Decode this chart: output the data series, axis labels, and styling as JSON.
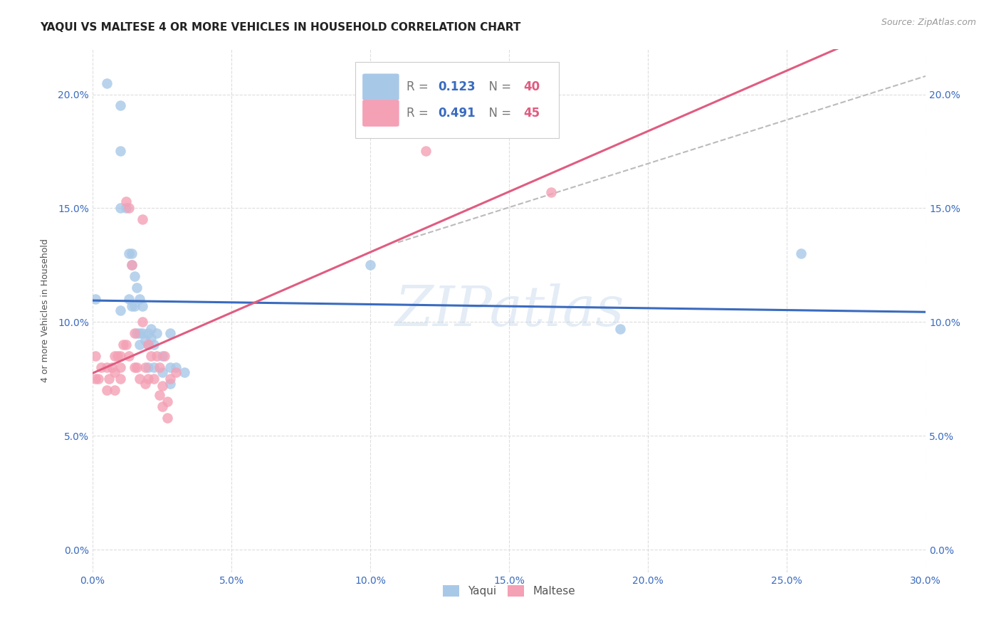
{
  "title": "YAQUI VS MALTESE 4 OR MORE VEHICLES IN HOUSEHOLD CORRELATION CHART",
  "source": "Source: ZipAtlas.com",
  "ylabel": "4 or more Vehicles in Household",
  "xlabel_ticks": [
    "0.0%",
    "5.0%",
    "10.0%",
    "15.0%",
    "20.0%",
    "25.0%",
    "30.0%"
  ],
  "xlabel_vals": [
    0.0,
    0.05,
    0.1,
    0.15,
    0.2,
    0.25,
    0.3
  ],
  "ylabel_ticks": [
    "0.0%",
    "5.0%",
    "10.0%",
    "15.0%",
    "20.0%"
  ],
  "ylabel_vals": [
    0.0,
    0.05,
    0.1,
    0.15,
    0.2
  ],
  "xlim": [
    0.0,
    0.3
  ],
  "ylim": [
    -0.01,
    0.22
  ],
  "watermark": "ZIPatlas",
  "legend1_color": "#a8c8e8",
  "legend2_color": "#f4a0b5",
  "trendline1_color": "#3a6bbf",
  "trendline2_color": "#e05c80",
  "trendline_dashed_color": "#bbbbbb",
  "background_color": "#ffffff",
  "grid_color": "#dddddd",
  "title_fontsize": 11,
  "axis_label_fontsize": 9,
  "tick_fontsize": 10,
  "source_fontsize": 9,
  "yaqui_x": [
    0.001,
    0.005,
    0.01,
    0.01,
    0.01,
    0.01,
    0.012,
    0.013,
    0.013,
    0.014,
    0.014,
    0.014,
    0.015,
    0.015,
    0.016,
    0.016,
    0.017,
    0.017,
    0.017,
    0.018,
    0.018,
    0.019,
    0.02,
    0.02,
    0.02,
    0.021,
    0.021,
    0.022,
    0.022,
    0.023,
    0.025,
    0.025,
    0.028,
    0.028,
    0.028,
    0.03,
    0.033,
    0.1,
    0.19,
    0.255
  ],
  "yaqui_y": [
    0.11,
    0.205,
    0.195,
    0.175,
    0.15,
    0.105,
    0.15,
    0.13,
    0.11,
    0.13,
    0.125,
    0.107,
    0.12,
    0.107,
    0.115,
    0.095,
    0.11,
    0.095,
    0.09,
    0.107,
    0.095,
    0.092,
    0.09,
    0.095,
    0.08,
    0.097,
    0.093,
    0.09,
    0.08,
    0.095,
    0.085,
    0.078,
    0.095,
    0.08,
    0.073,
    0.08,
    0.078,
    0.125,
    0.097,
    0.13
  ],
  "maltese_x": [
    0.001,
    0.001,
    0.002,
    0.003,
    0.005,
    0.005,
    0.006,
    0.007,
    0.008,
    0.008,
    0.008,
    0.009,
    0.01,
    0.01,
    0.01,
    0.011,
    0.012,
    0.012,
    0.013,
    0.013,
    0.014,
    0.015,
    0.015,
    0.016,
    0.017,
    0.018,
    0.018,
    0.019,
    0.019,
    0.02,
    0.02,
    0.021,
    0.022,
    0.023,
    0.024,
    0.024,
    0.025,
    0.025,
    0.026,
    0.027,
    0.027,
    0.028,
    0.03,
    0.12,
    0.165
  ],
  "maltese_y": [
    0.085,
    0.075,
    0.075,
    0.08,
    0.08,
    0.07,
    0.075,
    0.08,
    0.085,
    0.078,
    0.07,
    0.085,
    0.085,
    0.08,
    0.075,
    0.09,
    0.153,
    0.09,
    0.15,
    0.085,
    0.125,
    0.095,
    0.08,
    0.08,
    0.075,
    0.145,
    0.1,
    0.08,
    0.073,
    0.09,
    0.075,
    0.085,
    0.075,
    0.085,
    0.08,
    0.068,
    0.072,
    0.063,
    0.085,
    0.065,
    0.058,
    0.075,
    0.078,
    0.175,
    0.157
  ]
}
